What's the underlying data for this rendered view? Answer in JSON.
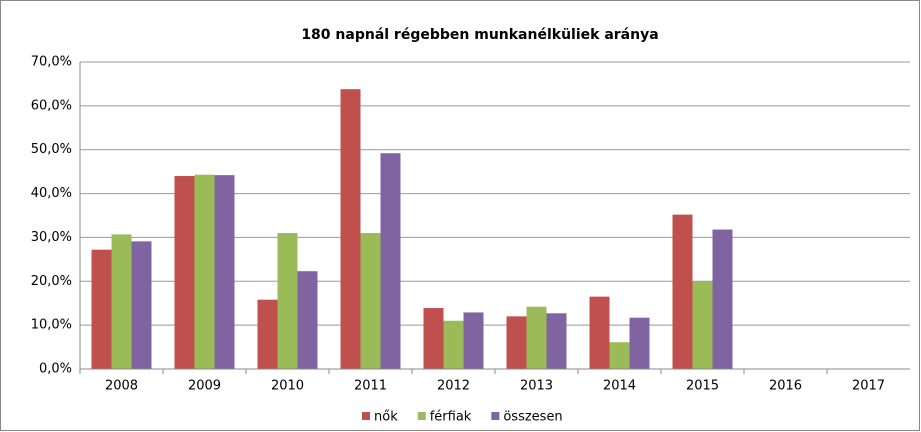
{
  "chart_data": {
    "type": "bar",
    "title": "180 napnál régebben munkanélküliek aránya",
    "categories": [
      "2008",
      "2009",
      "2010",
      "2011",
      "2012",
      "2013",
      "2014",
      "2015",
      "2016",
      "2017"
    ],
    "series": [
      {
        "name": "nők",
        "color": "#c0504d",
        "values": [
          27.2,
          44.0,
          15.8,
          63.8,
          13.9,
          12.0,
          16.5,
          35.2,
          null,
          null
        ]
      },
      {
        "name": "férfiak",
        "color": "#9bbb59",
        "values": [
          30.7,
          44.3,
          31.0,
          31.0,
          11.0,
          14.2,
          6.1,
          20.0,
          null,
          null
        ]
      },
      {
        "name": "összesen",
        "color": "#8064a2",
        "values": [
          29.1,
          44.2,
          22.3,
          49.2,
          12.9,
          12.7,
          11.7,
          31.8,
          null,
          null
        ]
      }
    ],
    "ylim": [
      0,
      70
    ],
    "yticks": [
      {
        "value": 0,
        "label": "0,0%"
      },
      {
        "value": 10,
        "label": "10,0%"
      },
      {
        "value": 20,
        "label": "20,0%"
      },
      {
        "value": 30,
        "label": "30,0%"
      },
      {
        "value": 40,
        "label": "40,0%"
      },
      {
        "value": 50,
        "label": "50,0%"
      },
      {
        "value": 60,
        "label": "60,0%"
      },
      {
        "value": 70,
        "label": "70,0%"
      }
    ],
    "grid": true,
    "legend": "bottom"
  }
}
